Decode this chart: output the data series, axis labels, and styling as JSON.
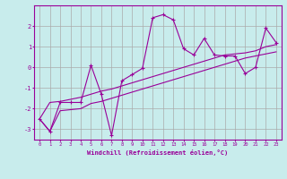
{
  "xlabel": "Windchill (Refroidissement éolien,°C)",
  "background_color": "#c8ecec",
  "line_color": "#990099",
  "grid_color": "#aaaaaa",
  "x_data": [
    0,
    1,
    2,
    3,
    4,
    5,
    6,
    7,
    8,
    9,
    10,
    11,
    12,
    13,
    14,
    15,
    16,
    17,
    18,
    19,
    20,
    21,
    22,
    23
  ],
  "y_main": [
    -2.5,
    -3.1,
    -1.7,
    -1.7,
    -1.7,
    0.1,
    -1.3,
    -3.3,
    -0.65,
    -0.35,
    -0.05,
    2.4,
    2.55,
    2.3,
    0.9,
    0.6,
    1.4,
    0.6,
    0.55,
    0.55,
    -0.3,
    0.0,
    1.9,
    1.2
  ],
  "y_lower": [
    -2.5,
    -3.1,
    -2.1,
    -2.05,
    -2.0,
    -1.75,
    -1.65,
    -1.5,
    -1.35,
    -1.2,
    -1.05,
    -0.9,
    -0.75,
    -0.6,
    -0.45,
    -0.3,
    -0.15,
    0.0,
    0.15,
    0.3,
    0.45,
    0.55,
    0.65,
    0.75
  ],
  "y_upper": [
    -2.5,
    -1.7,
    -1.65,
    -1.55,
    -1.45,
    -1.3,
    -1.15,
    -1.05,
    -0.9,
    -0.75,
    -0.6,
    -0.45,
    -0.3,
    -0.15,
    0.0,
    0.15,
    0.3,
    0.45,
    0.6,
    0.65,
    0.7,
    0.8,
    1.0,
    1.1
  ],
  "ylim": [
    -3.5,
    3.0
  ],
  "xlim": [
    -0.5,
    23.5
  ],
  "yticks": [
    -3,
    -2,
    -1,
    0,
    1,
    2
  ],
  "xticks": [
    0,
    1,
    2,
    3,
    4,
    5,
    6,
    7,
    8,
    9,
    10,
    11,
    12,
    13,
    14,
    15,
    16,
    17,
    18,
    19,
    20,
    21,
    22,
    23
  ]
}
